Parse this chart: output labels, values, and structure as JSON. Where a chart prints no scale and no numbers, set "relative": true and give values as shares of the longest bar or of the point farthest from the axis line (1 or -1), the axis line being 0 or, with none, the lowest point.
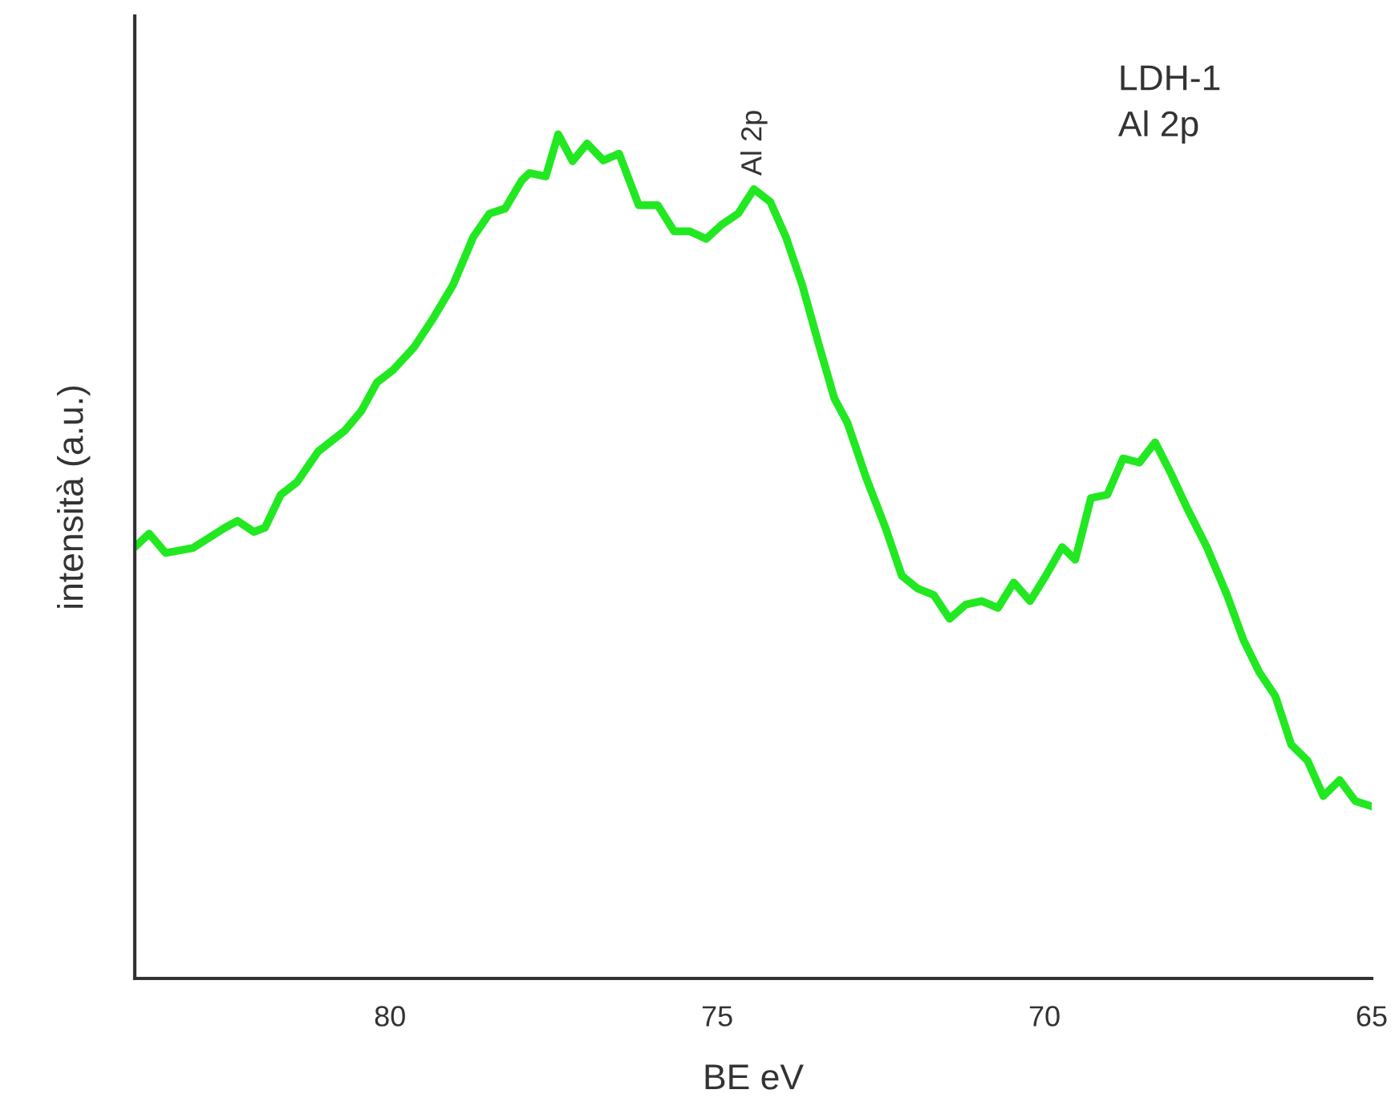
{
  "chart_data": {
    "type": "line",
    "relative": true,
    "xlabel": "BE eV",
    "ylabel": "intensità (a.u.)",
    "xlim": [
      83.9,
      65
    ],
    "xticks": [
      80,
      75,
      70,
      65
    ],
    "tick_labels": "x",
    "grid": false,
    "legend": false,
    "marker": "none",
    "line_style": "solid",
    "annotations": [
      {
        "text": "Al 2p",
        "x": 74.44,
        "y": 0.935
      },
      "LDH-1\nAl 2p"
    ],
    "series": [
      {
        "color": "#22e822",
        "x": [
          83.9,
          83.68,
          83.43,
          83.01,
          82.52,
          82.33,
          82.08,
          81.91,
          81.67,
          81.42,
          81.1,
          80.69,
          80.44,
          80.2,
          79.95,
          79.63,
          79.34,
          79.04,
          78.73,
          78.48,
          78.24,
          77.99,
          77.87,
          77.62,
          77.43,
          77.21,
          76.99,
          76.74,
          76.5,
          76.2,
          75.91,
          75.66,
          75.42,
          75.17,
          74.93,
          74.68,
          74.44,
          74.19,
          73.95,
          73.7,
          73.46,
          73.21,
          73.01,
          72.72,
          72.43,
          72.18,
          71.94,
          71.69,
          71.45,
          71.2,
          70.96,
          70.71,
          70.47,
          70.22,
          69.98,
          69.73,
          69.53,
          69.29,
          69.04,
          68.8,
          68.55,
          68.31,
          68.06,
          67.82,
          67.52,
          67.21,
          66.96,
          66.72,
          66.47,
          66.23,
          65.98,
          65.74,
          65.49,
          65.25,
          65.0
        ],
        "values": [
          0.511,
          0.527,
          0.504,
          0.51,
          0.534,
          0.542,
          0.529,
          0.534,
          0.573,
          0.588,
          0.624,
          0.649,
          0.672,
          0.706,
          0.721,
          0.748,
          0.782,
          0.821,
          0.878,
          0.906,
          0.912,
          0.945,
          0.954,
          0.95,
          1.0,
          0.968,
          0.989,
          0.969,
          0.977,
          0.916,
          0.916,
          0.885,
          0.885,
          0.876,
          0.893,
          0.906,
          0.935,
          0.92,
          0.878,
          0.821,
          0.754,
          0.687,
          0.658,
          0.592,
          0.534,
          0.477,
          0.462,
          0.454,
          0.426,
          0.443,
          0.447,
          0.439,
          0.469,
          0.447,
          0.477,
          0.511,
          0.496,
          0.569,
          0.573,
          0.616,
          0.611,
          0.635,
          0.597,
          0.557,
          0.511,
          0.454,
          0.401,
          0.363,
          0.334,
          0.277,
          0.258,
          0.216,
          0.235,
          0.21,
          0.204
        ]
      }
    ]
  }
}
